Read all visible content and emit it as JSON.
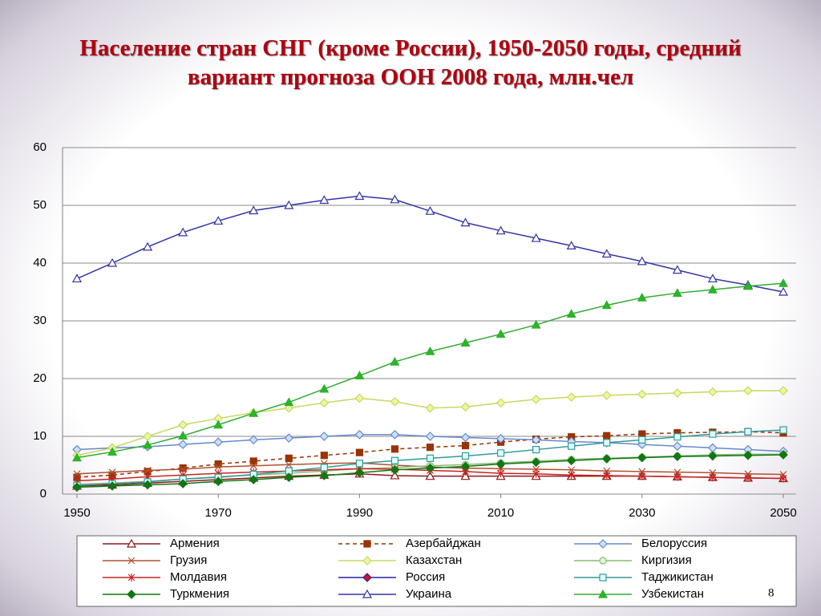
{
  "chart_data": {
    "type": "line",
    "title": "Население стран СНГ (кроме России), 1950-2050 годы, средний вариант прогноза ООН 2008 года, млн.чел",
    "page_number": "8",
    "x": [
      1950,
      1955,
      1960,
      1965,
      1970,
      1975,
      1980,
      1985,
      1990,
      1995,
      2000,
      2005,
      2010,
      2015,
      2020,
      2025,
      2030,
      2035,
      2040,
      2045,
      2050
    ],
    "xlim": [
      1950,
      2050
    ],
    "xticks": [
      1950,
      1970,
      1990,
      2010,
      2030,
      2050
    ],
    "ylim": [
      0,
      60
    ],
    "yticks": [
      0,
      10,
      20,
      30,
      40,
      50,
      60
    ],
    "grid": true,
    "series": [
      {
        "name": "Армения",
        "color": "#8b1a1a",
        "marker": "triangle",
        "marker_fill": "#ffffff",
        "dashed": false,
        "values": [
          1.4,
          1.6,
          1.9,
          2.2,
          2.5,
          2.8,
          3.1,
          3.3,
          3.5,
          3.2,
          3.1,
          3.1,
          3.1,
          3.1,
          3.1,
          3.1,
          3.1,
          3.0,
          2.9,
          2.8,
          2.7
        ]
      },
      {
        "name": "Азербайджан",
        "color": "#993300",
        "marker": "square",
        "marker_fill": "#993300",
        "dashed": true,
        "values": [
          2.9,
          3.3,
          3.9,
          4.5,
          5.2,
          5.7,
          6.2,
          6.7,
          7.2,
          7.8,
          8.1,
          8.4,
          9.0,
          9.5,
          9.9,
          10.1,
          10.4,
          10.6,
          10.7,
          10.8,
          10.6
        ]
      },
      {
        "name": "Белоруссия",
        "color": "#6688cc",
        "marker": "diamond",
        "marker_fill": "#cce0ff",
        "dashed": false,
        "values": [
          7.7,
          8.0,
          8.2,
          8.6,
          9.0,
          9.4,
          9.7,
          10.0,
          10.3,
          10.3,
          10.0,
          9.8,
          9.6,
          9.4,
          9.1,
          8.9,
          8.6,
          8.3,
          8.0,
          7.7,
          7.4
        ]
      },
      {
        "name": "Грузия",
        "color": "#b05030",
        "marker": "x",
        "marker_fill": "none",
        "dashed": false,
        "values": [
          3.5,
          3.8,
          4.1,
          4.3,
          4.7,
          4.9,
          5.1,
          5.3,
          5.4,
          5.0,
          4.7,
          4.5,
          4.4,
          4.3,
          4.2,
          4.0,
          3.9,
          3.8,
          3.7,
          3.5,
          3.4
        ]
      },
      {
        "name": "Казахстан",
        "color": "#c8d860",
        "marker": "diamond",
        "marker_fill": "#eef5a0",
        "dashed": false,
        "values": [
          6.7,
          8.0,
          10.0,
          12.0,
          13.1,
          14.1,
          14.9,
          15.8,
          16.6,
          16.0,
          14.9,
          15.1,
          15.8,
          16.4,
          16.8,
          17.1,
          17.3,
          17.5,
          17.7,
          17.9,
          17.9
        ]
      },
      {
        "name": "Киргизия",
        "color": "#88bb77",
        "marker": "circle",
        "marker_fill": "#e0f5d8",
        "dashed": false,
        "values": [
          1.7,
          1.9,
          2.2,
          2.6,
          3.0,
          3.3,
          3.6,
          4.0,
          4.4,
          4.6,
          4.9,
          5.1,
          5.4,
          5.7,
          6.0,
          6.2,
          6.4,
          6.6,
          6.8,
          6.9,
          6.9
        ]
      },
      {
        "name": "Молдавия",
        "color": "#cc2222",
        "marker": "star",
        "marker_fill": "none",
        "dashed": false,
        "values": [
          2.3,
          2.6,
          3.0,
          3.3,
          3.6,
          3.8,
          4.0,
          4.2,
          4.4,
          4.3,
          4.1,
          3.9,
          3.6,
          3.5,
          3.3,
          3.2,
          3.1,
          3.0,
          2.9,
          2.8,
          2.7
        ]
      },
      {
        "name": "Россия",
        "color": "#2222aa",
        "marker": "diamond",
        "marker_fill": "#dd1111",
        "dashed": false,
        "values": [
          null,
          null,
          null,
          null,
          null,
          null,
          null,
          null,
          null,
          null,
          null,
          null,
          null,
          null,
          null,
          null,
          null,
          null,
          null,
          null,
          null
        ]
      },
      {
        "name": "Таджикистан",
        "color": "#339999",
        "marker": "square",
        "marker_fill": "#e0ffff",
        "dashed": false,
        "values": [
          1.5,
          1.8,
          2.1,
          2.6,
          2.9,
          3.4,
          4.0,
          4.6,
          5.3,
          5.8,
          6.2,
          6.6,
          7.1,
          7.7,
          8.3,
          8.9,
          9.4,
          9.9,
          10.4,
          10.8,
          11.1
        ]
      },
      {
        "name": "Туркмения",
        "color": "#117711",
        "marker": "diamond",
        "marker_fill": "#117711",
        "dashed": false,
        "values": [
          1.2,
          1.4,
          1.6,
          1.8,
          2.2,
          2.5,
          2.9,
          3.2,
          3.7,
          4.2,
          4.5,
          4.8,
          5.2,
          5.5,
          5.8,
          6.1,
          6.3,
          6.5,
          6.6,
          6.7,
          6.8
        ]
      },
      {
        "name": "Украина",
        "color": "#3333aa",
        "marker": "triangle",
        "marker_fill": "#ffffee",
        "dashed": false,
        "values": [
          37.3,
          40.0,
          42.8,
          45.3,
          47.3,
          49.1,
          50.0,
          50.9,
          51.6,
          51.0,
          49.0,
          47.0,
          45.6,
          44.3,
          43.0,
          41.6,
          40.3,
          38.8,
          37.3,
          36.2,
          35.0
        ]
      },
      {
        "name": "Узбекистан",
        "color": "#33aa33",
        "marker": "triangle",
        "marker_fill": "#22bb22",
        "dashed": false,
        "values": [
          6.3,
          7.3,
          8.5,
          10.1,
          12.0,
          14.0,
          15.9,
          18.2,
          20.5,
          22.9,
          24.7,
          26.2,
          27.7,
          29.3,
          31.2,
          32.7,
          34.0,
          34.8,
          35.4,
          36.0,
          36.5
        ]
      }
    ]
  }
}
